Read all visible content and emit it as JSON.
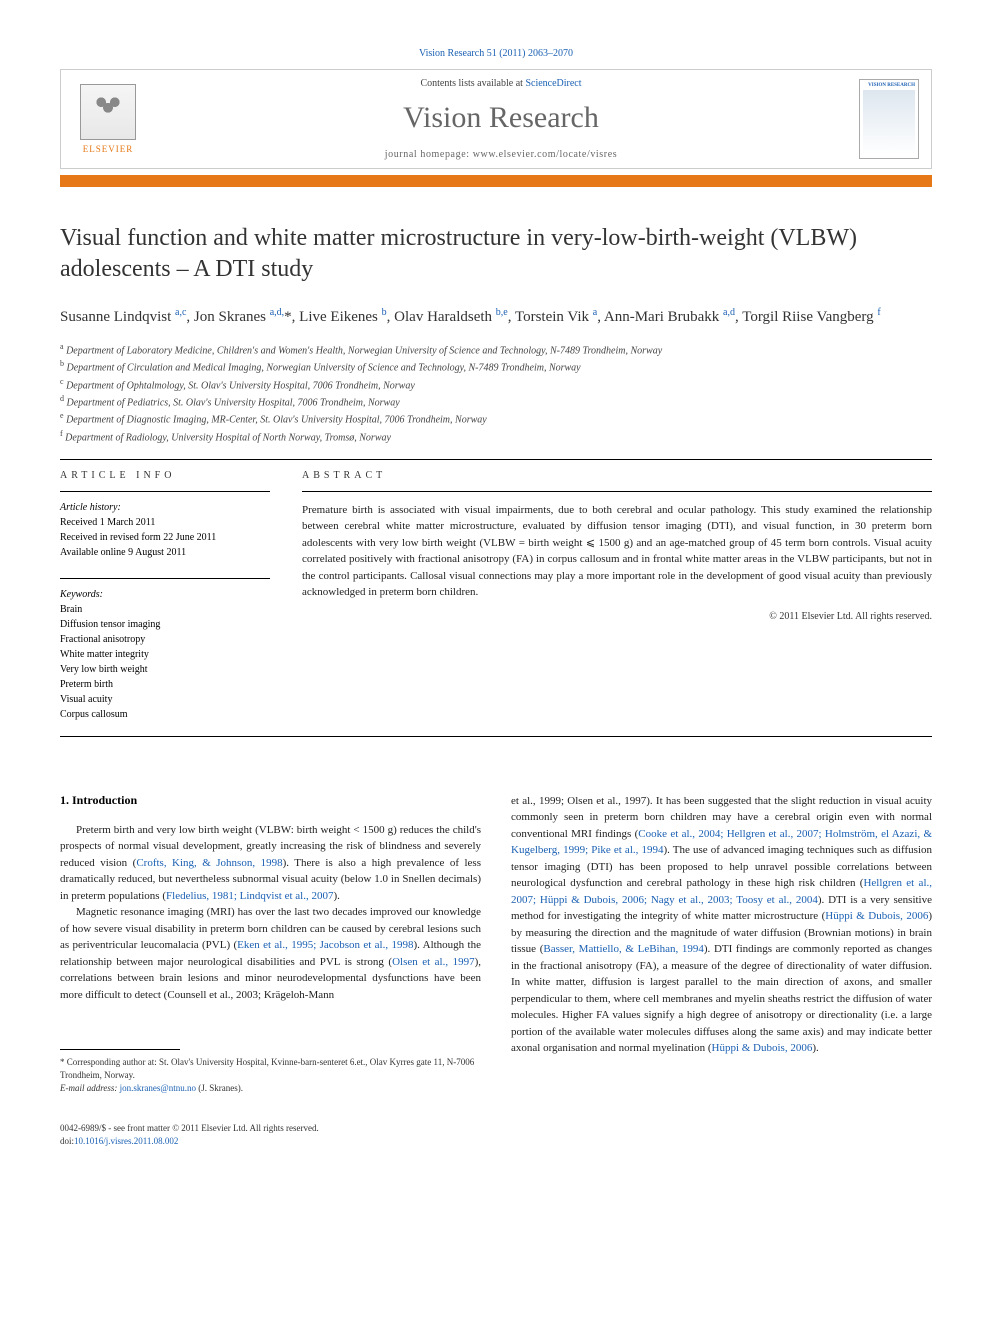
{
  "header": {
    "citation": "Vision Research 51 (2011) 2063–2070",
    "contents_prefix": "Contents lists available at ",
    "contents_link": "ScienceDirect",
    "journal": "Vision Research",
    "homepage_prefix": "journal homepage: ",
    "homepage_url": "www.elsevier.com/locate/visres",
    "publisher": "ELSEVIER",
    "cover_label": "VISION RESEARCH"
  },
  "article": {
    "title": "Visual function and white matter microstructure in very-low-birth-weight (VLBW) adolescents – A DTI study",
    "authors_html": "Susanne Lindqvist <sup>a,c</sup>, Jon Skranes <sup>a,d,</sup>*, Live Eikenes <sup>b</sup>, Olav Haraldseth <sup>b,e</sup>, Torstein Vik <sup>a</sup>, Ann-Mari Brubakk <sup>a,d</sup>, Torgil Riise Vangberg <sup>f</sup>",
    "affiliations": [
      "a Department of Laboratory Medicine, Children's and Women's Health, Norwegian University of Science and Technology, N-7489 Trondheim, Norway",
      "b Department of Circulation and Medical Imaging, Norwegian University of Science and Technology, N-7489 Trondheim, Norway",
      "c Department of Ophtalmology, St. Olav's University Hospital, 7006 Trondheim, Norway",
      "d Department of Pediatrics, St. Olav's University Hospital, 7006 Trondheim, Norway",
      "e Department of Diagnostic Imaging, MR-Center, St. Olav's University Hospital, 7006 Trondheim, Norway",
      "f Department of Radiology, University Hospital of North Norway, Tromsø, Norway"
    ]
  },
  "info": {
    "heading": "ARTICLE INFO",
    "history_label": "Article history:",
    "history": [
      "Received 1 March 2011",
      "Received in revised form 22 June 2011",
      "Available online 9 August 2011"
    ],
    "keywords_label": "Keywords:",
    "keywords": [
      "Brain",
      "Diffusion tensor imaging",
      "Fractional anisotropy",
      "White matter integrity",
      "Very low birth weight",
      "Preterm birth",
      "Visual acuity",
      "Corpus callosum"
    ]
  },
  "abstract": {
    "heading": "ABSTRACT",
    "text": "Premature birth is associated with visual impairments, due to both cerebral and ocular pathology. This study examined the relationship between cerebral white matter microstructure, evaluated by diffusion tensor imaging (DTI), and visual function, in 30 preterm born adolescents with very low birth weight (VLBW = birth weight ⩽ 1500 g) and an age-matched group of 45 term born controls. Visual acuity correlated positively with fractional anisotropy (FA) in corpus callosum and in frontal white matter areas in the VLBW participants, but not in the control participants. Callosal visual connections may play a more important role in the development of good visual acuity than previously acknowledged in preterm born children.",
    "copyright": "© 2011 Elsevier Ltd. All rights reserved."
  },
  "body": {
    "intro_heading": "1. Introduction",
    "col1_p1": "Preterm birth and very low birth weight (VLBW: birth weight < 1500 g) reduces the child's prospects of normal visual development, greatly increasing the risk of blindness and severely reduced vision (Crofts, King, & Johnson, 1998). There is also a high prevalence of less dramatically reduced, but nevertheless subnormal visual acuity (below 1.0 in Snellen decimals) in preterm populations (Fledelius, 1981; Lindqvist et al., 2007).",
    "col1_p2": "Magnetic resonance imaging (MRI) has over the last two decades improved our knowledge of how severe visual disability in preterm born children can be caused by cerebral lesions such as periventricular leucomalacia (PVL) (Eken et al., 1995; Jacobson et al., 1998). Although the relationship between major neurological disabilities and PVL is strong (Olsen et al., 1997), correlations between brain lesions and minor neurodevelopmental dysfunctions have been more difficult to detect (Counsell et al., 2003; Krägeloh-Mann",
    "col2_p1": "et al., 1999; Olsen et al., 1997). It has been suggested that the slight reduction in visual acuity commonly seen in preterm born children may have a cerebral origin even with normal conventional MRI findings (Cooke et al., 2004; Hellgren et al., 2007; Holmström, el Azazi, & Kugelberg, 1999; Pike et al., 1994). The use of advanced imaging techniques such as diffusion tensor imaging (DTI) has been proposed to help unravel possible correlations between neurological dysfunction and cerebral pathology in these high risk children (Hellgren et al., 2007; Hüppi & Dubois, 2006; Nagy et al., 2003; Toosy et al., 2004). DTI is a very sensitive method for investigating the integrity of white matter microstructure (Hüppi & Dubois, 2006) by measuring the direction and the magnitude of water diffusion (Brownian motions) in brain tissue (Basser, Mattiello, & LeBihan, 1994). DTI findings are commonly reported as changes in the fractional anisotropy (FA), a measure of the degree of directionality of water diffusion. In white matter, diffusion is largest parallel to the main direction of axons, and smaller perpendicular to them, where cell membranes and myelin sheaths restrict the diffusion of water molecules. Higher FA values signify a high degree of anisotropy or directionality (i.e. a large portion of the available water molecules diffuses along the same axis) and may indicate better axonal organisation and normal myelination (Hüppi & Dubois, 2006)."
  },
  "footnote": {
    "corr": "* Corresponding author at: St. Olav's University Hospital, Kvinne-barn-senteret 6.et., Olav Kyrres gate 11, N-7006 Trondheim, Norway.",
    "email_label": "E-mail address: ",
    "email": "jon.skranes@ntnu.no",
    "email_suffix": " (J. Skranes)."
  },
  "footer": {
    "line1": "0042-6989/$ - see front matter © 2011 Elsevier Ltd. All rights reserved.",
    "doi_label": "doi:",
    "doi": "10.1016/j.visres.2011.08.002"
  },
  "colors": {
    "link": "#1b60b3",
    "orange": "#e67817",
    "text": "#222222"
  }
}
